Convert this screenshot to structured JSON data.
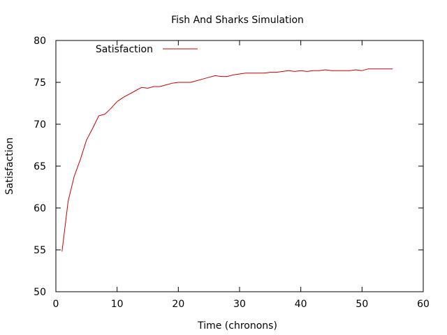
{
  "chart_data": {
    "type": "line",
    "title": "Fish And Sharks Simulation",
    "xlabel": "Time (chronons)",
    "ylabel": "Satisfaction",
    "xlim": [
      0,
      60
    ],
    "ylim": [
      50,
      80
    ],
    "xticks": [
      0,
      10,
      20,
      30,
      40,
      50,
      60
    ],
    "yticks": [
      50,
      55,
      60,
      65,
      70,
      75,
      80
    ],
    "grid": false,
    "legend_position": "top-left",
    "series": [
      {
        "name": "Satisfaction",
        "color": "#cc0000",
        "x": [
          1,
          2,
          3,
          4,
          5,
          6,
          7,
          8,
          9,
          10,
          11,
          12,
          13,
          14,
          15,
          16,
          17,
          18,
          19,
          20,
          21,
          22,
          23,
          24,
          25,
          26,
          27,
          28,
          29,
          30,
          31,
          32,
          33,
          34,
          35,
          36,
          37,
          38,
          39,
          40,
          41,
          42,
          43,
          44,
          45,
          46,
          47,
          48,
          49,
          50,
          51,
          52,
          53,
          54,
          55
        ],
        "y": [
          54.8,
          60.8,
          63.8,
          65.8,
          68.1,
          69.5,
          71.0,
          71.2,
          71.9,
          72.7,
          73.2,
          73.6,
          74.0,
          74.4,
          74.3,
          74.5,
          74.5,
          74.7,
          74.9,
          75.0,
          75.0,
          75.0,
          75.2,
          75.4,
          75.6,
          75.8,
          75.7,
          75.7,
          75.9,
          76.0,
          76.1,
          76.1,
          76.1,
          76.1,
          76.2,
          76.2,
          76.3,
          76.4,
          76.3,
          76.4,
          76.3,
          76.4,
          76.4,
          76.5,
          76.4,
          76.4,
          76.4,
          76.4,
          76.5,
          76.4,
          76.6,
          76.6,
          76.6,
          76.6,
          76.6
        ]
      }
    ]
  }
}
